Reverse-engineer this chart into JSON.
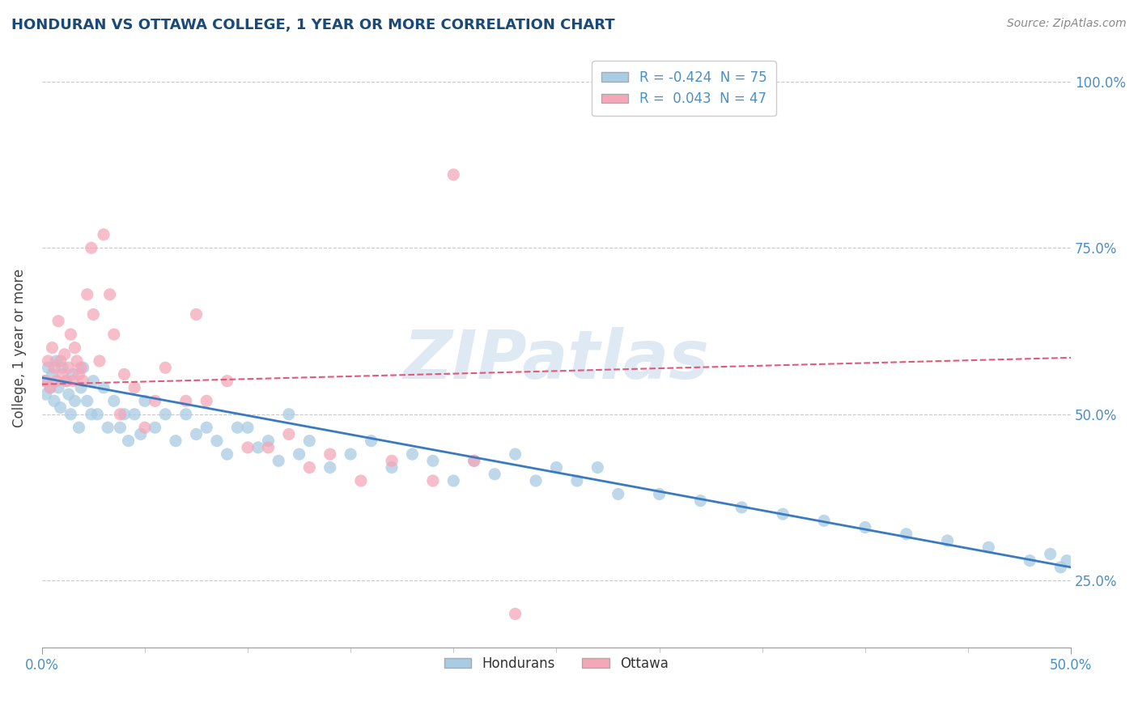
{
  "title": "HONDURAN VS OTTAWA COLLEGE, 1 YEAR OR MORE CORRELATION CHART",
  "source_text": "Source: ZipAtlas.com",
  "ylabel": "College, 1 year or more",
  "xlim": [
    0.0,
    0.5
  ],
  "ylim": [
    0.15,
    1.05
  ],
  "blue_color": "#a8cce4",
  "pink_color": "#f4a7b9",
  "blue_line_color": "#3a7abf",
  "pink_line_color": "#e05a7a",
  "R_blue": -0.424,
  "N_blue": 75,
  "R_pink": 0.043,
  "N_pink": 47,
  "legend_label_blue": "Hondurans",
  "legend_label_pink": "Ottawa",
  "watermark": "ZIPatlas",
  "blue_scatter_x": [
    0.001,
    0.002,
    0.003,
    0.004,
    0.005,
    0.006,
    0.007,
    0.008,
    0.009,
    0.01,
    0.012,
    0.013,
    0.014,
    0.015,
    0.016,
    0.018,
    0.019,
    0.02,
    0.022,
    0.024,
    0.025,
    0.027,
    0.03,
    0.032,
    0.035,
    0.038,
    0.04,
    0.042,
    0.045,
    0.048,
    0.05,
    0.055,
    0.06,
    0.065,
    0.07,
    0.075,
    0.08,
    0.085,
    0.09,
    0.095,
    0.1,
    0.105,
    0.11,
    0.115,
    0.12,
    0.125,
    0.13,
    0.14,
    0.15,
    0.16,
    0.17,
    0.18,
    0.19,
    0.2,
    0.21,
    0.22,
    0.23,
    0.24,
    0.25,
    0.26,
    0.27,
    0.28,
    0.3,
    0.32,
    0.34,
    0.36,
    0.38,
    0.4,
    0.42,
    0.44,
    0.46,
    0.48,
    0.49,
    0.495,
    0.498
  ],
  "blue_scatter_y": [
    0.55,
    0.53,
    0.57,
    0.54,
    0.56,
    0.52,
    0.58,
    0.54,
    0.51,
    0.57,
    0.55,
    0.53,
    0.5,
    0.56,
    0.52,
    0.48,
    0.54,
    0.57,
    0.52,
    0.5,
    0.55,
    0.5,
    0.54,
    0.48,
    0.52,
    0.48,
    0.5,
    0.46,
    0.5,
    0.47,
    0.52,
    0.48,
    0.5,
    0.46,
    0.5,
    0.47,
    0.48,
    0.46,
    0.44,
    0.48,
    0.48,
    0.45,
    0.46,
    0.43,
    0.5,
    0.44,
    0.46,
    0.42,
    0.44,
    0.46,
    0.42,
    0.44,
    0.43,
    0.4,
    0.43,
    0.41,
    0.44,
    0.4,
    0.42,
    0.4,
    0.42,
    0.38,
    0.38,
    0.37,
    0.36,
    0.35,
    0.34,
    0.33,
    0.32,
    0.31,
    0.3,
    0.28,
    0.29,
    0.27,
    0.28
  ],
  "pink_scatter_x": [
    0.002,
    0.003,
    0.004,
    0.005,
    0.006,
    0.007,
    0.008,
    0.009,
    0.01,
    0.011,
    0.012,
    0.013,
    0.014,
    0.015,
    0.016,
    0.017,
    0.018,
    0.019,
    0.02,
    0.022,
    0.024,
    0.025,
    0.028,
    0.03,
    0.033,
    0.035,
    0.038,
    0.04,
    0.045,
    0.05,
    0.055,
    0.06,
    0.07,
    0.075,
    0.08,
    0.09,
    0.1,
    0.11,
    0.12,
    0.13,
    0.14,
    0.155,
    0.17,
    0.19,
    0.21,
    0.23,
    0.2
  ],
  "pink_scatter_y": [
    0.55,
    0.58,
    0.54,
    0.6,
    0.57,
    0.55,
    0.64,
    0.58,
    0.56,
    0.59,
    0.55,
    0.57,
    0.62,
    0.55,
    0.6,
    0.58,
    0.56,
    0.57,
    0.55,
    0.68,
    0.75,
    0.65,
    0.58,
    0.77,
    0.68,
    0.62,
    0.5,
    0.56,
    0.54,
    0.48,
    0.52,
    0.57,
    0.52,
    0.65,
    0.52,
    0.55,
    0.45,
    0.45,
    0.47,
    0.42,
    0.44,
    0.4,
    0.43,
    0.4,
    0.43,
    0.2,
    0.86
  ],
  "blue_trend_x": [
    0.0,
    0.5
  ],
  "blue_trend_y": [
    0.555,
    0.27
  ],
  "pink_trend_x": [
    0.0,
    0.5
  ],
  "pink_trend_y": [
    0.545,
    0.585
  ]
}
